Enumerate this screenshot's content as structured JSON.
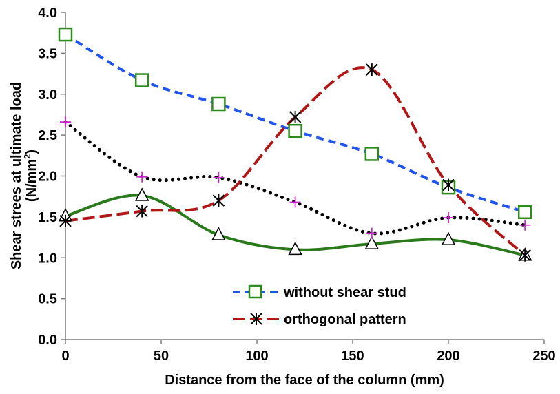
{
  "chart_data": {
    "type": "line",
    "xlabel": "Distance from the face of the column (mm)",
    "ylabel": "Shear strees at ultimate load (N/mm²)",
    "ylabel_parts": [
      "Shear strees at ultimate load",
      "(N/mm",
      "2",
      ")"
    ],
    "xlim": [
      0,
      250
    ],
    "ylim": [
      0,
      4.0
    ],
    "xticks": [
      "0",
      "50",
      "100",
      "150",
      "200",
      "250"
    ],
    "yticks": [
      "0.0",
      "0.5",
      "1.0",
      "1.5",
      "2.0",
      "2.5",
      "3.0",
      "3.5",
      "4.0"
    ],
    "grid": false,
    "legend": {
      "placement": "bottom-center",
      "entries": [
        "without shear stud",
        "orthogonal pattern"
      ]
    },
    "x": [
      0,
      40,
      80,
      120,
      160,
      200,
      240
    ],
    "series": [
      {
        "name": "without shear stud",
        "color": "#2255ee",
        "marker_color": "#2e8b1e",
        "marker": "square",
        "line": "dashed",
        "values": [
          3.73,
          3.17,
          2.88,
          2.55,
          2.27,
          1.86,
          1.56
        ]
      },
      {
        "name": "orthogonal pattern",
        "color": "#b01818",
        "marker_color": "#000000",
        "marker": "asterisk",
        "line": "long-dash",
        "values": [
          1.45,
          1.57,
          1.7,
          2.72,
          3.3,
          1.89,
          1.03
        ]
      },
      {
        "color": "#000000",
        "marker_color": "#cc22cc",
        "marker": "plus",
        "line": "dotted",
        "values": [
          2.66,
          1.99,
          1.98,
          1.68,
          1.3,
          1.49,
          1.4
        ]
      },
      {
        "color": "#2a7a1c",
        "marker_color": "#000000",
        "marker": "triangle",
        "line": "solid",
        "values": [
          1.51,
          1.76,
          1.28,
          1.1,
          1.17,
          1.22,
          1.03
        ]
      }
    ]
  }
}
